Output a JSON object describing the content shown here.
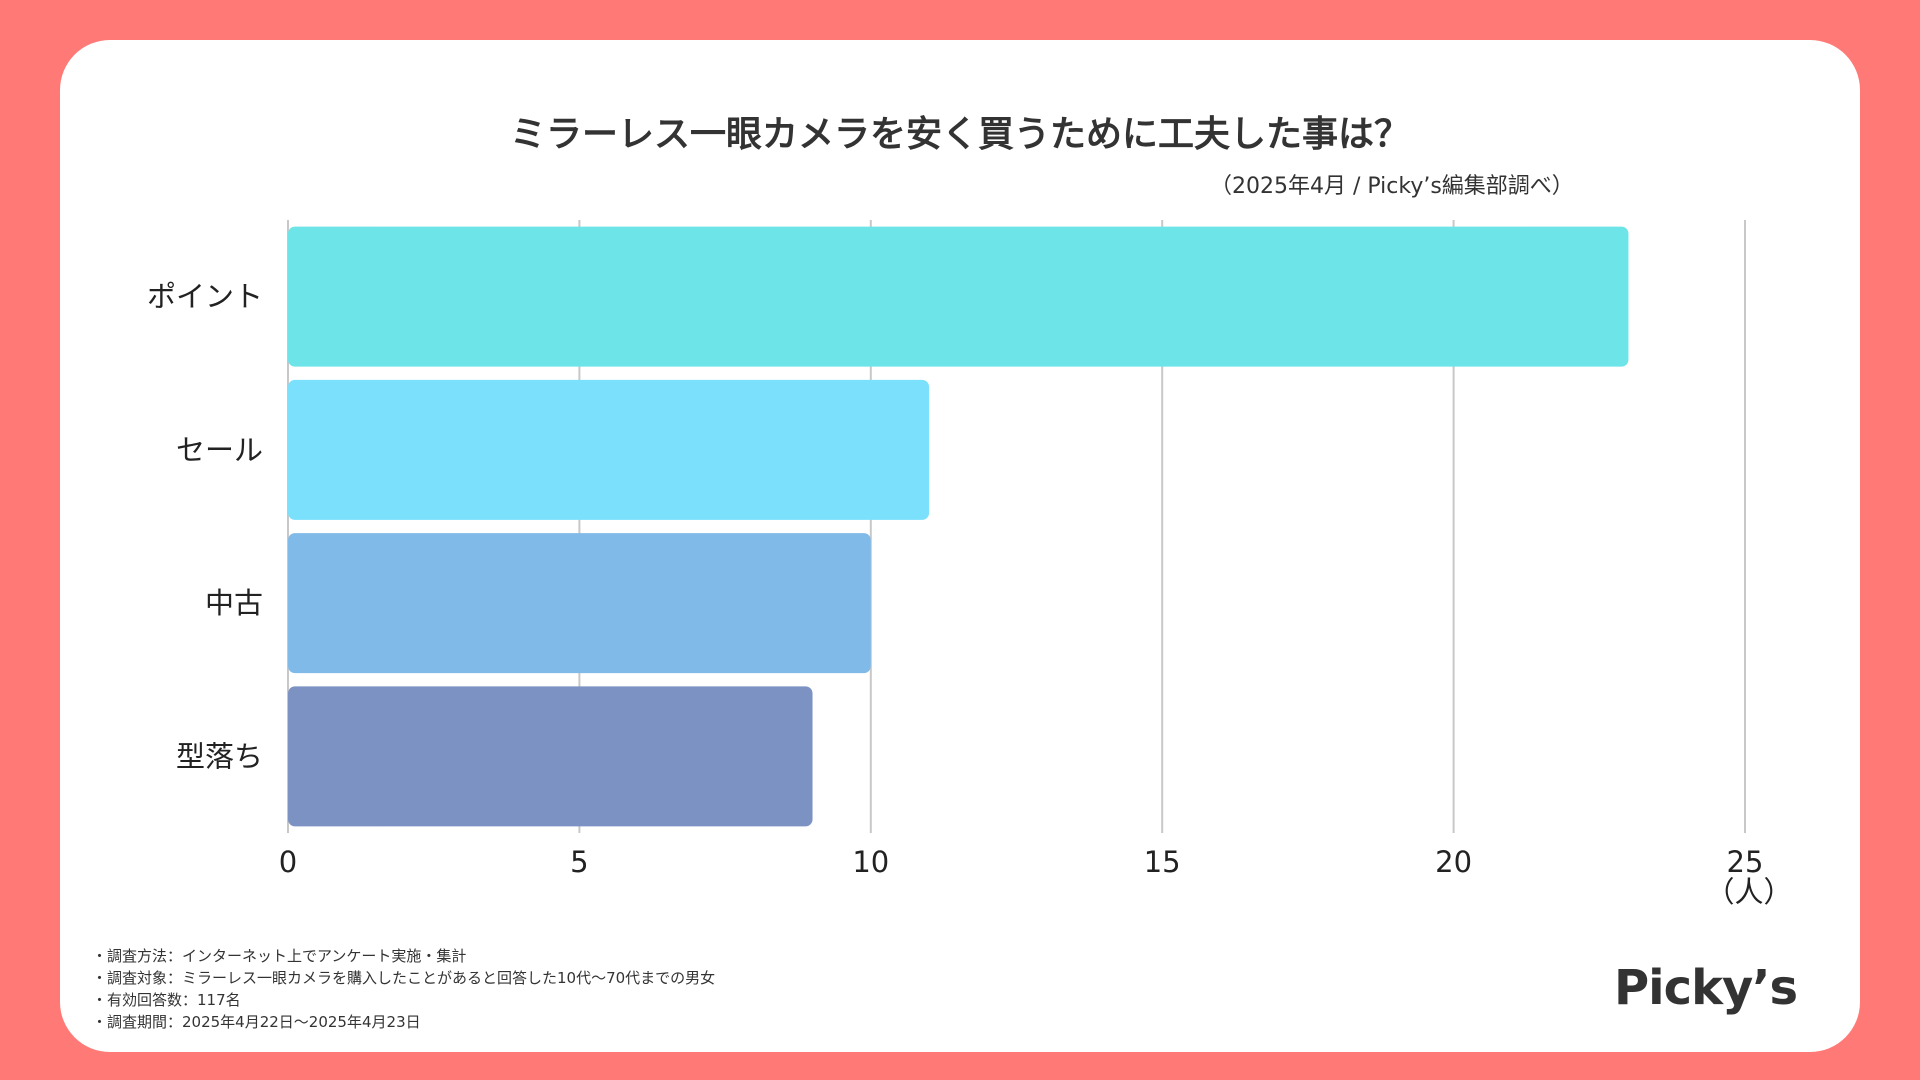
{
  "chart_data": {
    "type": "bar",
    "orientation": "horizontal",
    "title": "ミラーレス一眼カメラを安く買うために工夫した事は？",
    "subtitle": "（2025年4月 / Picky’s編集部調べ）",
    "categories": [
      "ポイント",
      "セール",
      "中古",
      "型落ち"
    ],
    "values": [
      23,
      11,
      10,
      9
    ],
    "colors": [
      "#6CE4E8",
      "#7AE0FC",
      "#80BAE8",
      "#7B92C2"
    ],
    "xlim": [
      0,
      25
    ],
    "xticks": [
      0,
      5,
      10,
      15,
      20,
      25
    ],
    "xunit": "（人）",
    "grid": true
  },
  "notes": [
    "・調査方法：インターネット上でアンケート実施・集計",
    "・調査対象：ミラーレス一眼カメラを購入したことがあると回答した10代〜70代までの男女",
    "・有効回答数：117名",
    "・調査期間：2025年4月22日〜2025年4月23日"
  ],
  "logo": "Picky’s",
  "colors": {
    "background": "#FF7A76",
    "card": "#FFFFFF",
    "grid": "#C8C8C8",
    "text": "#333333"
  }
}
